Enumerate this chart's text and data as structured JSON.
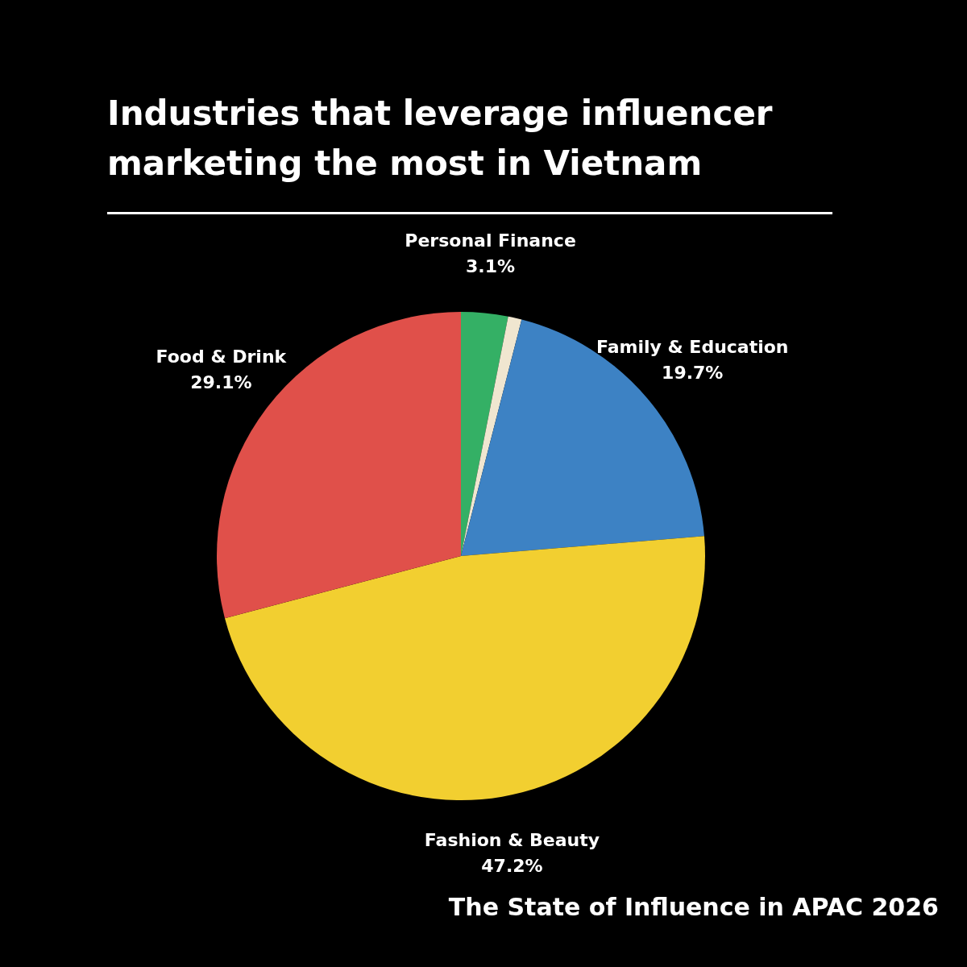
{
  "chart_data": {
    "type": "pie",
    "title": "Industries that leverage influencer marketing the most in Vietnam",
    "categories": [
      "Personal Finance",
      null,
      "Family & Education",
      "Fashion & Beauty",
      "Food & Drink"
    ],
    "values": [
      3.1,
      0.9,
      19.7,
      47.2,
      29.1
    ],
    "value_labels": [
      "3.1%",
      null,
      "19.7%",
      "47.2%",
      "29.1%"
    ],
    "colors": [
      "#34b065",
      "#f0e6d0",
      "#3d82c4",
      "#f2cf30",
      "#e0504a"
    ],
    "legend": false,
    "annotations": [
      "The State of Influence in APAC 2026"
    ]
  }
}
